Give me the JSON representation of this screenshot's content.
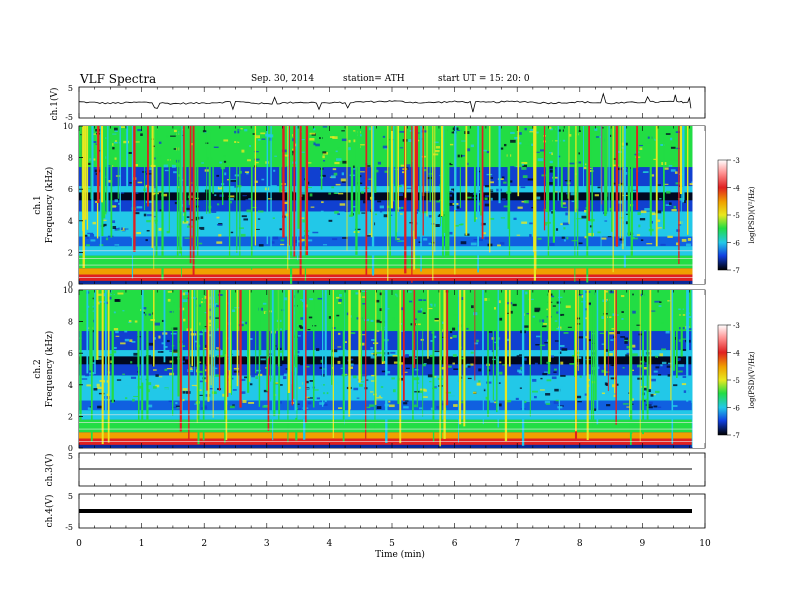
{
  "header": {
    "title": "VLF  Spectra",
    "date": "Sep. 30, 2014",
    "station": "station= ATH",
    "start": "start  UT  =    15: 20: 0"
  },
  "chart_data": [
    {
      "type": "line",
      "panel": "ch1-waveform",
      "ylabel": "ch.1(V)",
      "ylim": [
        -5,
        5
      ],
      "yticks": [
        5,
        -5
      ],
      "xlim": [
        0,
        10
      ],
      "x": [
        0,
        0.5,
        1,
        1.5,
        2,
        2.5,
        3,
        3.5,
        4,
        4.5,
        5,
        5.5,
        6,
        6.5,
        7,
        7.5,
        8,
        8.5,
        9,
        9.5,
        9.8
      ],
      "y": [
        0.2,
        -0.3,
        0.1,
        -0.4,
        -0.2,
        0.3,
        -0.5,
        0.1,
        -0.2,
        0.2,
        0.5,
        -0.1,
        0.3,
        0.0,
        0.4,
        -0.2,
        0.2,
        -0.3,
        0.1,
        0.3,
        0.0
      ]
    },
    {
      "type": "heatmap",
      "panel": "ch1-spectrogram",
      "ylabel": "ch.1  Frequency  (kHz)",
      "ylim": [
        0,
        10
      ],
      "yticks": [
        0,
        2,
        4,
        6,
        8,
        10
      ],
      "xlim": [
        0,
        10
      ],
      "colorbar": {
        "label": "log(PSD)(V²/Hz)",
        "range": [
          -7,
          -3
        ],
        "ticks": [
          "-3",
          "-4",
          "-5",
          "-6",
          "-7"
        ]
      }
    },
    {
      "type": "heatmap",
      "panel": "ch2-spectrogram",
      "ylabel": "ch.2  Frequency  (kHz)",
      "ylim": [
        0,
        10
      ],
      "yticks": [
        0,
        2,
        4,
        6,
        8,
        10
      ],
      "xlim": [
        0,
        10
      ],
      "colorbar": {
        "label": "log(PSD)(V²/Hz)",
        "range": [
          -7,
          -3
        ],
        "ticks": [
          "-3",
          "-4",
          "-5",
          "-6",
          "-7"
        ]
      }
    },
    {
      "type": "line",
      "panel": "ch3-waveform",
      "ylabel": "ch.3(V)",
      "ylim": [
        -5,
        5
      ],
      "yticks": [
        5
      ],
      "xlim": [
        0,
        10
      ],
      "x": [
        0,
        9.8
      ],
      "y": [
        0,
        0
      ]
    },
    {
      "type": "line",
      "panel": "ch4-waveform",
      "ylabel": "ch.4(V)",
      "ylim": [
        -5,
        5
      ],
      "yticks": [
        5,
        -5
      ],
      "xlim": [
        0,
        10
      ],
      "x": [
        0,
        9.8
      ],
      "y": [
        0,
        0
      ]
    }
  ],
  "xaxis": {
    "label": "Time  (min)",
    "ticks": [
      "0",
      "1",
      "2",
      "3",
      "4",
      "5",
      "6",
      "7",
      "8",
      "9",
      "10"
    ]
  },
  "colors": {
    "spec_bg": "#0a2a9a",
    "spec_green": "#22dd44",
    "spec_cyan": "#22c8e8",
    "spec_yellow": "#e8e820",
    "spec_red": "#e02020"
  }
}
